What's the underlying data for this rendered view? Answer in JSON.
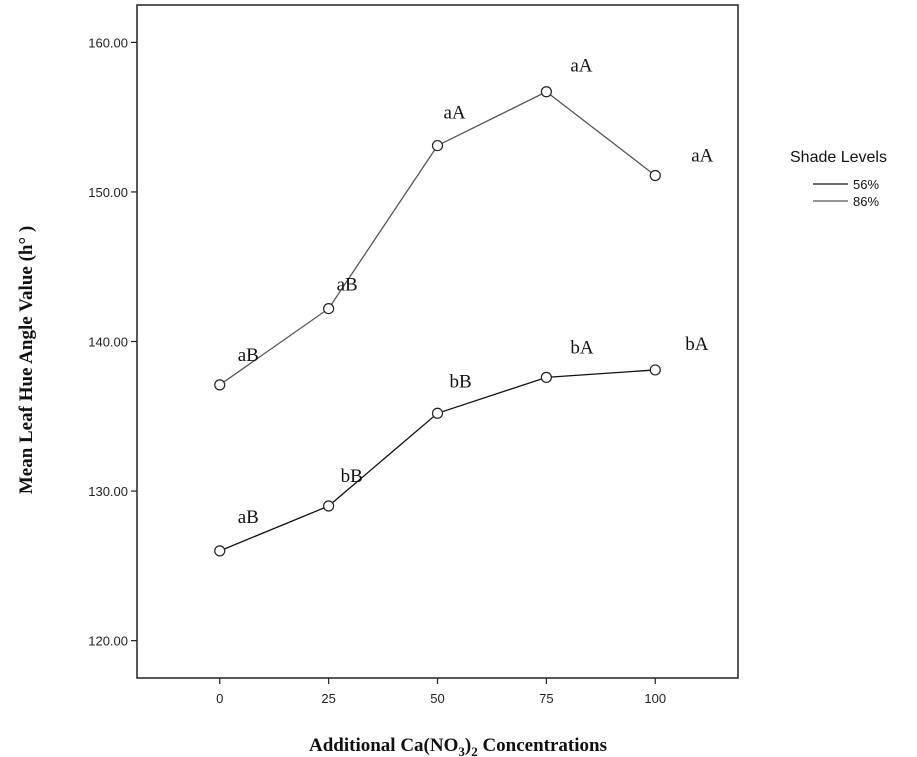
{
  "chart_data": {
    "type": "line",
    "x": [
      0,
      25,
      50,
      75,
      100
    ],
    "x_tick_labels": [
      "0",
      "25",
      "50",
      "75",
      "100"
    ],
    "y_tick_labels": [
      "120.00",
      "130.00",
      "140.00",
      "150.00",
      "160.00"
    ],
    "y_ticks": [
      120,
      130,
      140,
      150,
      160
    ],
    "xlim": [
      -19,
      119
    ],
    "ylim": [
      117.5,
      162.5
    ],
    "xlabel_prefix": "Additional Ca(NO",
    "xlabel_sub1": "3",
    "xlabel_mid": ")",
    "xlabel_sub2": "2",
    "xlabel_suffix": "  Concentrations",
    "ylabel": "Mean Leaf Hue Angle Value (h° )",
    "legend": {
      "title": "Shade Levels",
      "placement": "right"
    },
    "grid": false,
    "series": [
      {
        "name": "56%",
        "values": [
          126.0,
          129.0,
          135.2,
          137.6,
          138.1
        ],
        "labels": [
          "aB",
          "bB",
          "bB",
          "bA",
          "bA"
        ],
        "color": "#111111"
      },
      {
        "name": "86%",
        "values": [
          137.1,
          142.2,
          153.1,
          156.7,
          151.1
        ],
        "labels": [
          "aB",
          "aB",
          "aA",
          "aA",
          "aA"
        ],
        "color": "#555555"
      }
    ]
  }
}
